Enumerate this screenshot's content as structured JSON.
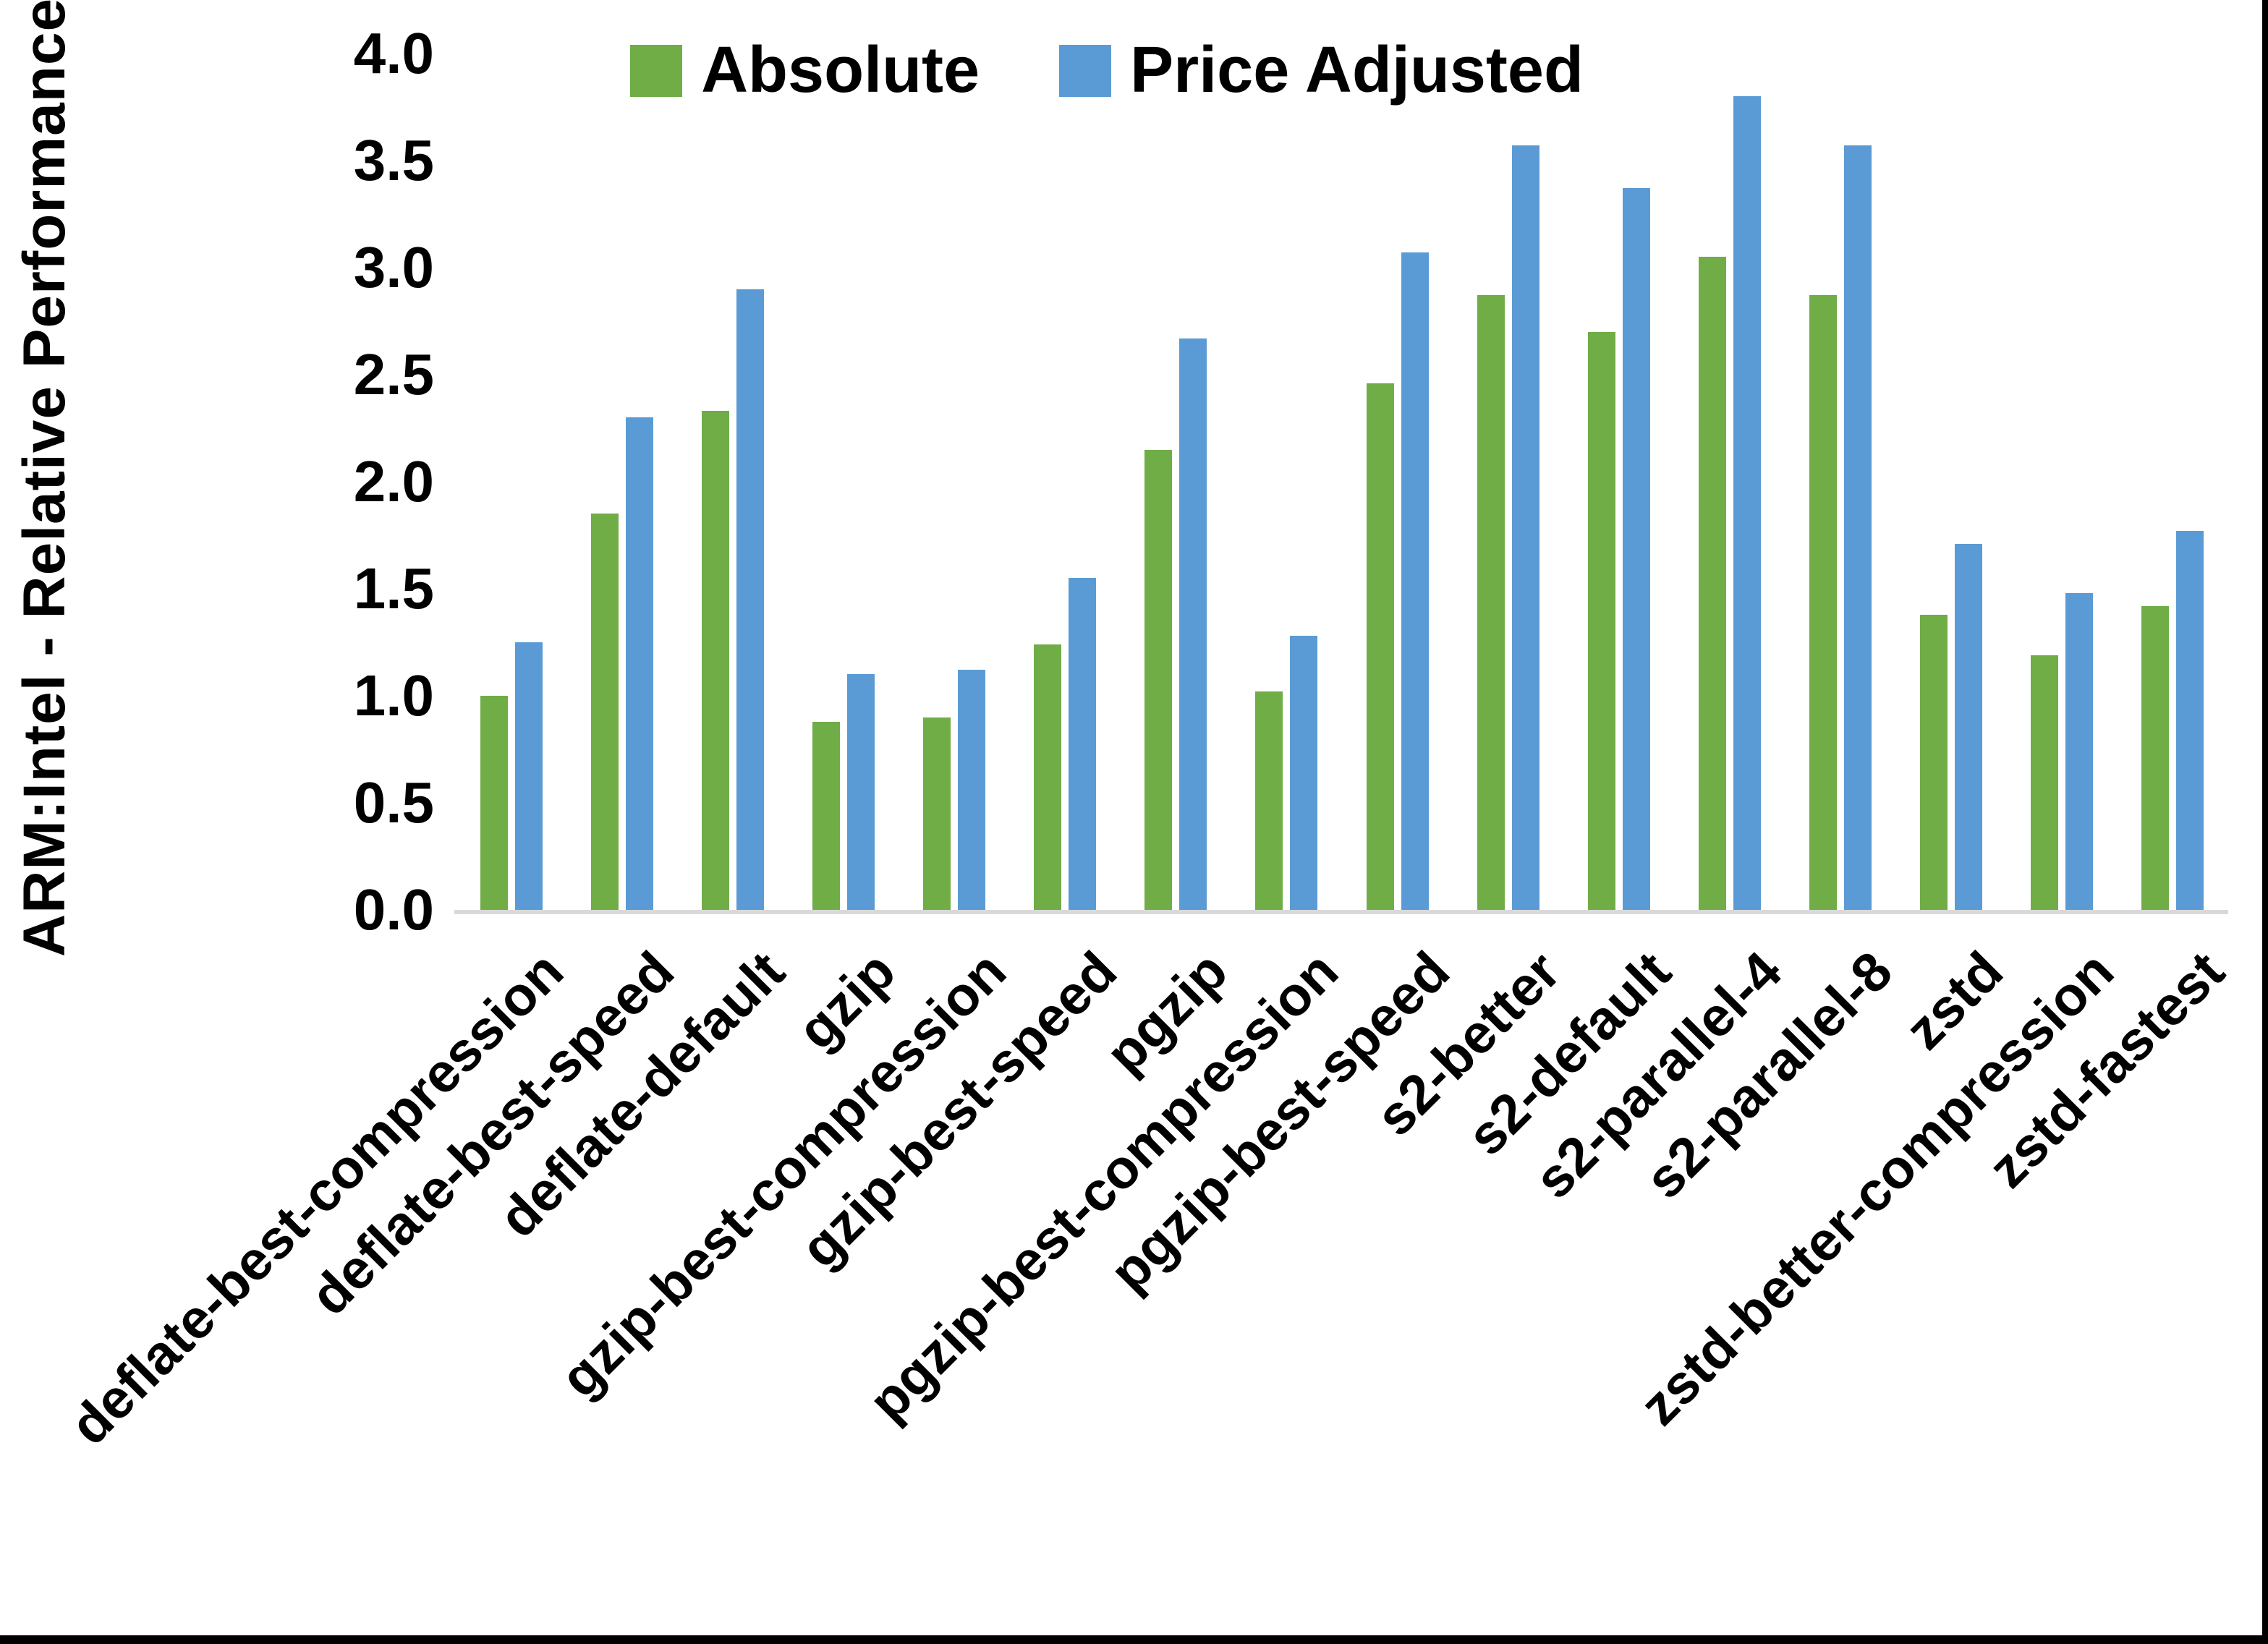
{
  "y_axis": {
    "title": "ARM:Intel - Relative Performance",
    "tick_labels": [
      "0.0",
      "0.5",
      "1.0",
      "1.5",
      "2.0",
      "2.5",
      "3.0",
      "3.5",
      "4.0"
    ]
  },
  "legend": {
    "items": [
      {
        "label": "Absolute",
        "color": "#70AD47"
      },
      {
        "label": "Price Adjusted",
        "color": "#5B9BD5"
      }
    ]
  },
  "frame": {
    "border_color": "#000000",
    "background_color": "#FFFFFF",
    "axis_line_color": "#D9D9D9"
  },
  "chart_data": {
    "type": "bar",
    "title": "",
    "xlabel": "",
    "ylabel": "ARM:Intel - Relative Performance",
    "ylim": [
      0,
      4
    ],
    "ytick_step": 0.5,
    "grid": false,
    "legend_position": "top-center",
    "categories": [
      "deflate-best-compression",
      "deflate-best-speed",
      "deflate-default",
      "gzip",
      "gzip-best-compression",
      "gzip-best-speed",
      "pgzip",
      "pgzip-best-compression",
      "pgzip-best-speed",
      "s2-better",
      "s2-default",
      "s2-parallel-4",
      "s2-parallel-8",
      "zstd",
      "zstd-better-compression",
      "zstd-fastest"
    ],
    "series": [
      {
        "name": "Absolute",
        "color": "#70AD47",
        "values": [
          1.0,
          1.85,
          2.33,
          0.88,
          0.9,
          1.24,
          2.15,
          1.02,
          2.46,
          2.87,
          2.7,
          3.05,
          2.87,
          1.38,
          1.19,
          1.42
        ]
      },
      {
        "name": "Price Adjusted",
        "color": "#5B9BD5",
        "values": [
          1.25,
          2.3,
          2.9,
          1.1,
          1.12,
          1.55,
          2.67,
          1.28,
          3.07,
          3.57,
          3.37,
          3.8,
          3.57,
          1.71,
          1.48,
          1.77
        ]
      }
    ]
  }
}
